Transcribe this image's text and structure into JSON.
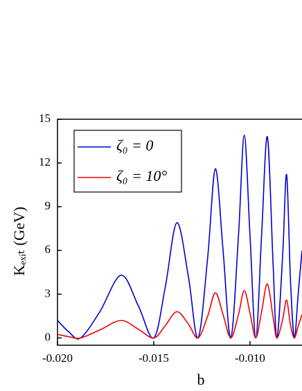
{
  "chart_data": {
    "type": "line",
    "x_label": "b",
    "y_label": "Kₑₓᵢₜ (GeV)",
    "x": [
      -0.02,
      -0.0194,
      -0.0188,
      -0.0178,
      -0.0167,
      -0.0158,
      -0.015,
      -0.0144,
      -0.0138,
      -0.0132,
      -0.0127,
      -0.0122,
      -0.0118,
      -0.0114,
      -0.011,
      -0.0106,
      -0.0103,
      -0.01,
      -0.0097,
      -0.0094,
      -0.0091,
      -0.0088,
      -0.0086,
      -0.0083,
      -0.0081,
      -0.0079,
      -0.0077,
      -0.0075,
      -0.0073
    ],
    "series": [
      {
        "name": "ζ₀ = 0",
        "color": "#0000cc",
        "values": [
          1.2,
          0.4,
          0,
          1.8,
          4.3,
          2.2,
          0,
          3.5,
          7.9,
          4.2,
          0,
          5.5,
          11.6,
          6,
          0,
          7,
          13.9,
          7,
          0,
          7,
          13.8,
          5,
          0,
          5.8,
          11.2,
          4,
          0,
          3,
          6
        ]
      },
      {
        "name": "ζ₀ = 10°",
        "color": "#ee0000",
        "values": [
          0.25,
          0.08,
          0,
          0.55,
          1.2,
          0.6,
          0,
          0.85,
          1.8,
          0.95,
          0,
          1.5,
          3.1,
          1.6,
          0,
          1.6,
          3.25,
          1.7,
          0,
          1.8,
          3.7,
          1.4,
          0,
          1.3,
          2.6,
          0.9,
          0,
          0.8,
          1.6
        ]
      }
    ],
    "xlim": [
      -0.02,
      -0.0073
    ],
    "xticks": [
      {
        "value": -0.02,
        "label": "-0.020"
      },
      {
        "value": -0.015,
        "label": "-0.015"
      },
      {
        "value": -0.01,
        "label": "-0.010"
      }
    ],
    "ylim": [
      -0.5,
      15
    ],
    "yticks": [
      0,
      3,
      6,
      9,
      12,
      15
    ],
    "legend": "upper-left"
  }
}
